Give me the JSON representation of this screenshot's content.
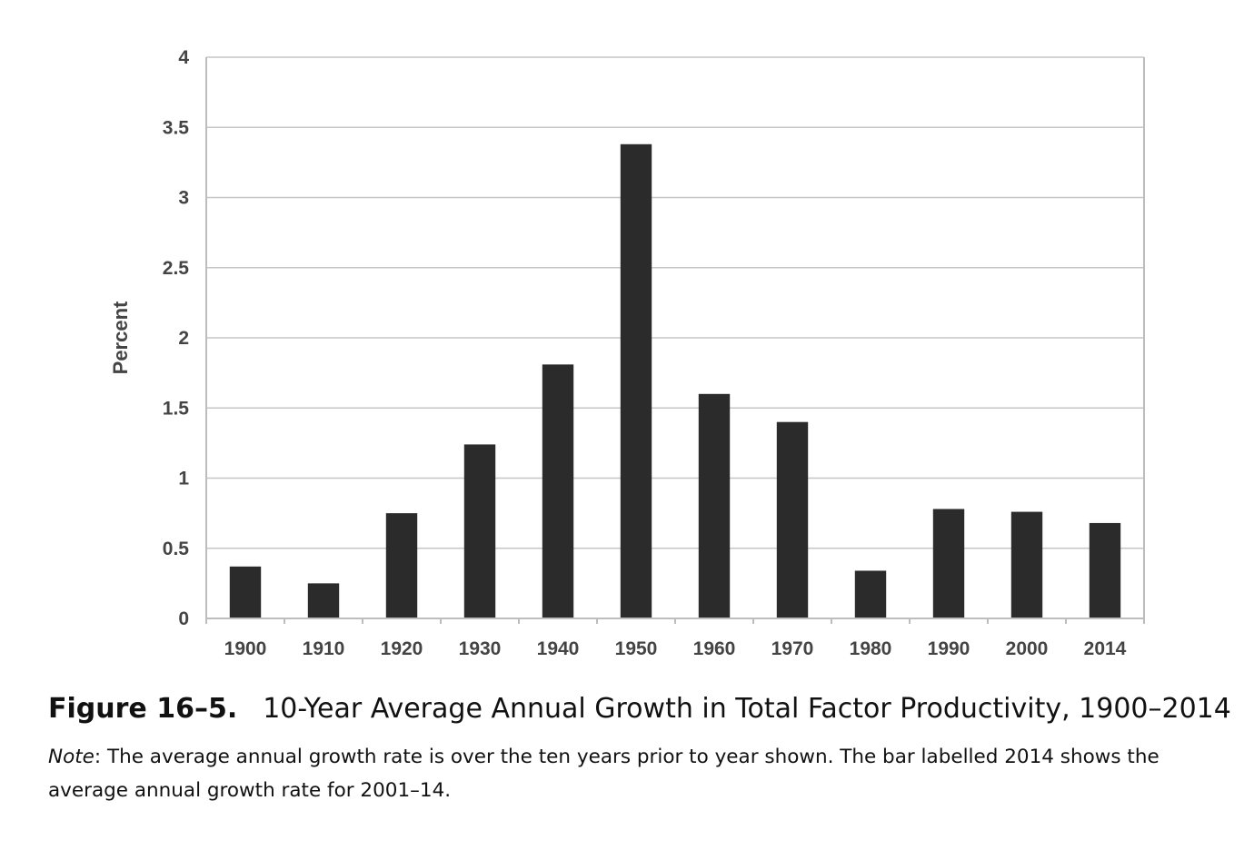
{
  "chart_data": {
    "type": "bar",
    "categories": [
      "1900",
      "1910",
      "1920",
      "1930",
      "1940",
      "1950",
      "1960",
      "1970",
      "1980",
      "1990",
      "2000",
      "2014"
    ],
    "values": [
      0.37,
      0.25,
      0.75,
      1.24,
      1.81,
      3.38,
      1.6,
      1.4,
      0.34,
      0.78,
      0.76,
      0.68
    ],
    "ylabel": "Percent",
    "xlabel": "",
    "ylim": [
      0,
      4
    ],
    "yticks": [
      0,
      0.5,
      1,
      1.5,
      2,
      2.5,
      3,
      3.5,
      4
    ],
    "ytick_labels": [
      "0",
      "0.5",
      "1",
      "1.5",
      "2",
      "2.5",
      "3",
      "3.5",
      "4"
    ],
    "grid": true,
    "bar_color": "#2b2b2b"
  },
  "caption": {
    "label": "Figure 16–5.",
    "title": "10-Year Average Annual Growth in Total Factor Productivity, 1900–2014"
  },
  "note": {
    "label": "Note",
    "text": ": The average annual growth rate is over the ten years prior to year shown. The bar labelled 2014 shows the average annual growth rate for 2001–14."
  }
}
